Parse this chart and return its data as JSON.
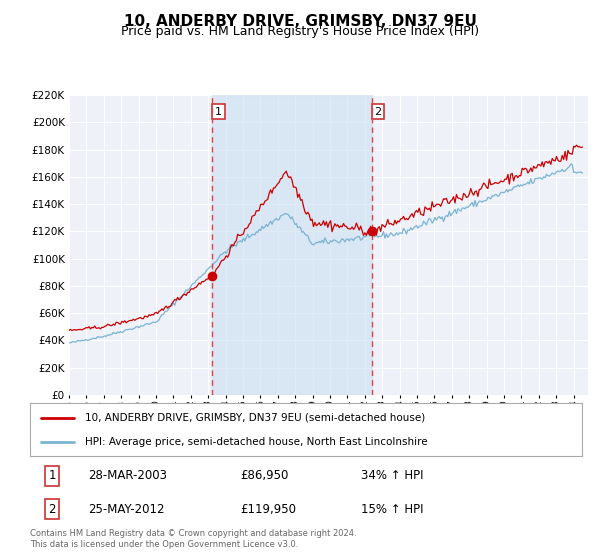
{
  "title": "10, ANDERBY DRIVE, GRIMSBY, DN37 9EU",
  "subtitle": "Price paid vs. HM Land Registry's House Price Index (HPI)",
  "title_fontsize": 11,
  "subtitle_fontsize": 9,
  "background_color": "#ffffff",
  "plot_bg_color": "#eef2f8",
  "grid_color": "#ffffff",
  "sale1_date_num": 2003.24,
  "sale1_price": 86950,
  "sale2_date_num": 2012.4,
  "sale2_price": 119950,
  "hpi_line_color": "#7ab3d4",
  "price_line_color": "#cc0000",
  "dashed_line_color": "#dd4444",
  "fill_color": "#ccdff0",
  "fill_alpha": 0.6,
  "marker_color": "#cc0000",
  "ylim": [
    0,
    220000
  ],
  "ytick_step": 20000,
  "legend1_text": "10, ANDERBY DRIVE, GRIMSBY, DN37 9EU (semi-detached house)",
  "legend2_text": "HPI: Average price, semi-detached house, North East Lincolnshire",
  "table_row1": [
    "1",
    "28-MAR-2003",
    "£86,950",
    "34% ↑ HPI"
  ],
  "table_row2": [
    "2",
    "25-MAY-2012",
    "£119,950",
    "15% ↑ HPI"
  ],
  "footnote": "Contains HM Land Registry data © Crown copyright and database right 2024.\nThis data is licensed under the Open Government Licence v3.0.",
  "box_color": "#cc3333"
}
